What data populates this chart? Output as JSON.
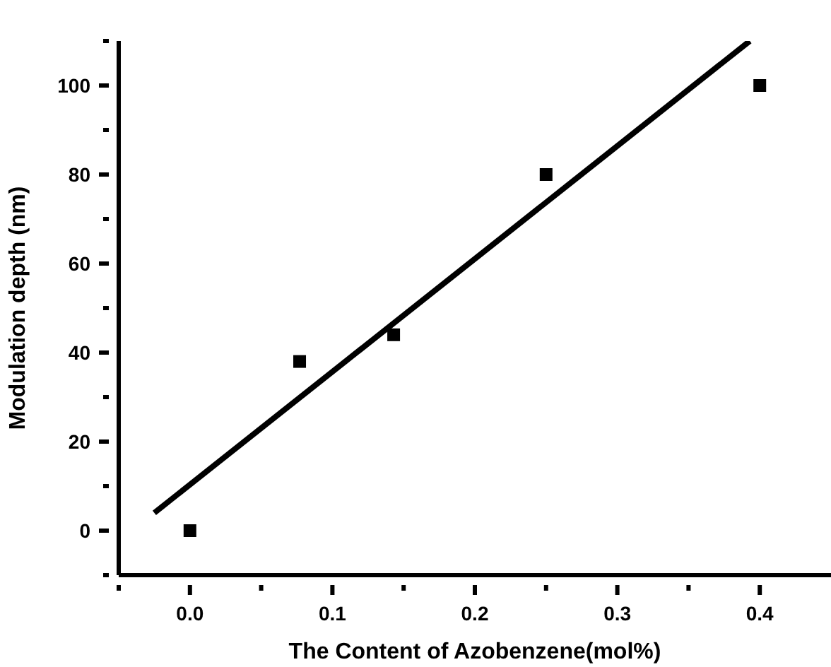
{
  "chart_data": {
    "type": "scatter",
    "xlabel": "The Content of Azobenzene(mol%)",
    "ylabel": "Modulation depth (nm)",
    "xlim": [
      -0.05,
      0.45
    ],
    "ylim": [
      -10,
      110
    ],
    "xticks": [
      {
        "value": -0.05,
        "label": null
      },
      {
        "value": 0,
        "label": "0.0"
      },
      {
        "value": 0.05,
        "label": null
      },
      {
        "value": 0.1,
        "label": "0.1"
      },
      {
        "value": 0.15,
        "label": null
      },
      {
        "value": 0.2,
        "label": "0.2"
      },
      {
        "value": 0.25,
        "label": null
      },
      {
        "value": 0.3,
        "label": "0.3"
      },
      {
        "value": 0.35,
        "label": null
      },
      {
        "value": 0.4,
        "label": "0.4"
      }
    ],
    "yticks": [
      {
        "value": -10,
        "label": null
      },
      0,
      {
        "value": 10,
        "label": null
      },
      20,
      {
        "value": 30,
        "label": null
      },
      40,
      {
        "value": 50,
        "label": null
      },
      60,
      {
        "value": 70,
        "label": null
      },
      80,
      {
        "value": 90,
        "label": null
      },
      100,
      {
        "value": 110,
        "label": null
      }
    ],
    "series": [
      {
        "color": "#000000",
        "marker": "square",
        "x": [
          0,
          0.077,
          0.143,
          0.25,
          0.4
        ],
        "values": [
          0,
          38,
          44,
          80,
          100
        ]
      },
      {
        "type": "line",
        "color": "#000000",
        "marker": "none",
        "line_style": "solid",
        "x": [
          -0.025,
          0.393
        ],
        "values": [
          4,
          110
        ]
      }
    ],
    "grid": false
  }
}
